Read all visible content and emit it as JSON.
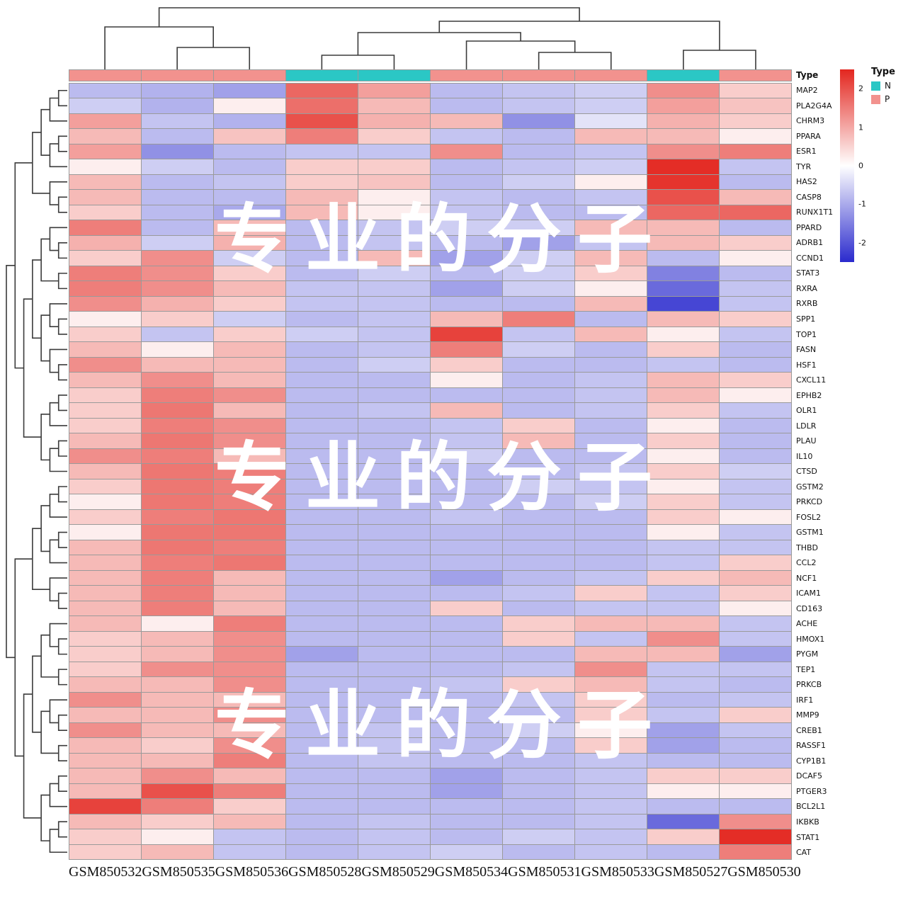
{
  "watermark": {
    "text": "专业的分子",
    "color": "#ffffff"
  },
  "annotation": {
    "label": "Type",
    "per_column": [
      "P",
      "P",
      "P",
      "N",
      "N",
      "P",
      "P",
      "P",
      "N",
      "P"
    ]
  },
  "legend": {
    "colorbar": {
      "ticks": [
        "2",
        "1",
        "0",
        "-1",
        "-2"
      ],
      "range": [
        2.5,
        -2.5
      ],
      "high_color": "#E3261F",
      "mid_color": "#FFFFFF",
      "low_color": "#2A2ACD"
    },
    "type": {
      "title": "Type",
      "items": [
        {
          "label": "N",
          "color": "#2BC7C5"
        },
        {
          "label": "P",
          "color": "#F2928E"
        }
      ]
    }
  },
  "chart_data": {
    "type": "heatmap",
    "title": "",
    "xlabel": "",
    "ylabel": "",
    "grid": true,
    "legend_position": "right",
    "columns": [
      "GSM850532",
      "GSM850535",
      "GSM850536",
      "GSM850528",
      "GSM850529",
      "GSM850534",
      "GSM850531",
      "GSM850533",
      "GSM850527",
      "GSM850530"
    ],
    "column_types": [
      "P",
      "P",
      "P",
      "N",
      "N",
      "P",
      "P",
      "P",
      "N",
      "P"
    ],
    "rows": [
      "MAP2",
      "PLA2G4A",
      "CHRM3",
      "PPARA",
      "ESR1",
      "TYR",
      "HAS2",
      "CASP8",
      "RUNX1T1",
      "PPARD",
      "ADRB1",
      "CCND1",
      "STAT3",
      "RXRA",
      "RXRB",
      "SPP1",
      "TOP1",
      "FASN",
      "HSF1",
      "CXCL11",
      "EPHB2",
      "OLR1",
      "LDLR",
      "PLAU",
      "IL10",
      "CTSD",
      "GSTM2",
      "PRKCD",
      "FOSL2",
      "GSTM1",
      "THBD",
      "CCL2",
      "NCF1",
      "ICAM1",
      "CD163",
      "ACHE",
      "HMOX1",
      "PYGM",
      "TEP1",
      "PRKCB",
      "IRF1",
      "MMP9",
      "CREB1",
      "RASSF1",
      "CYP1B1",
      "DCAF5",
      "PTGER3",
      "BCL2L1",
      "IKBKB",
      "STAT1",
      "CAT"
    ],
    "value_range": [
      -2.5,
      2.5
    ],
    "colormap": {
      "low": "#2A2ACD",
      "mid": "#FFFFFF",
      "high": "#E3261F"
    },
    "values": [
      [
        -0.6,
        -0.7,
        -0.9,
        1.6,
        0.9,
        -0.6,
        -0.5,
        -0.4,
        1.1,
        0.4
      ],
      [
        -0.4,
        -0.7,
        0.1,
        1.5,
        0.6,
        -0.6,
        -0.5,
        -0.4,
        0.9,
        0.5
      ],
      [
        0.9,
        -0.5,
        -0.7,
        1.9,
        0.7,
        0.6,
        -1.1,
        -0.2,
        0.7,
        0.4
      ],
      [
        0.6,
        -0.6,
        0.5,
        1.3,
        0.4,
        -0.5,
        -0.6,
        0.6,
        0.6,
        0.1
      ],
      [
        0.9,
        -1.1,
        -0.6,
        -0.5,
        -0.5,
        1.1,
        -0.6,
        -0.5,
        1.1,
        1.3
      ],
      [
        0.1,
        -0.4,
        -0.6,
        0.4,
        0.4,
        -0.6,
        -0.5,
        -0.4,
        2.4,
        -0.5
      ],
      [
        0.6,
        -0.6,
        -0.5,
        0.4,
        0.5,
        -0.6,
        -0.4,
        0.1,
        2.3,
        -0.6
      ],
      [
        0.6,
        -0.6,
        -0.6,
        0.6,
        0.1,
        -0.5,
        -0.6,
        -0.5,
        1.9,
        0.6
      ],
      [
        0.4,
        -0.6,
        -0.8,
        0.6,
        0.1,
        -0.5,
        -0.6,
        -0.6,
        1.6,
        1.6
      ],
      [
        1.3,
        -0.6,
        0.6,
        -0.6,
        -0.5,
        -0.4,
        -0.4,
        0.6,
        0.6,
        -0.6
      ],
      [
        0.7,
        -0.4,
        0.7,
        -0.6,
        -0.5,
        -0.6,
        -0.9,
        -0.5,
        0.6,
        0.4
      ],
      [
        0.4,
        1.1,
        -0.4,
        -0.6,
        0.6,
        -0.9,
        -0.4,
        0.6,
        -0.6,
        0.1
      ],
      [
        1.3,
        1.1,
        0.4,
        -0.6,
        -0.4,
        -0.6,
        -0.4,
        0.4,
        -1.3,
        -0.6
      ],
      [
        1.3,
        1.1,
        0.6,
        -0.5,
        -0.5,
        -0.9,
        -0.4,
        0.1,
        -1.6,
        -0.5
      ],
      [
        1.1,
        0.7,
        0.4,
        -0.5,
        -0.5,
        -0.6,
        -0.6,
        0.6,
        -2.1,
        -0.5
      ],
      [
        0.1,
        0.4,
        -0.4,
        -0.6,
        -0.5,
        0.6,
        1.3,
        -0.6,
        0.6,
        0.4
      ],
      [
        0.4,
        -0.5,
        0.4,
        -0.4,
        -0.5,
        2.1,
        -0.5,
        0.6,
        0.1,
        -0.5
      ],
      [
        0.6,
        0.1,
        0.6,
        -0.6,
        -0.5,
        1.3,
        -0.4,
        -0.6,
        0.4,
        -0.6
      ],
      [
        1.1,
        0.6,
        0.6,
        -0.6,
        -0.4,
        0.4,
        -0.6,
        -0.6,
        -0.5,
        -0.6
      ],
      [
        0.6,
        1.1,
        0.6,
        -0.6,
        -0.6,
        0.1,
        -0.6,
        -0.5,
        0.6,
        0.4
      ],
      [
        0.4,
        1.3,
        1.1,
        -0.6,
        -0.6,
        -0.6,
        -0.6,
        -0.5,
        0.6,
        0.1
      ],
      [
        0.4,
        1.4,
        0.6,
        -0.6,
        -0.5,
        0.6,
        -0.6,
        -0.5,
        0.4,
        -0.5
      ],
      [
        0.4,
        1.3,
        1.1,
        -0.6,
        -0.6,
        -0.5,
        0.4,
        -0.6,
        0.1,
        -0.6
      ],
      [
        0.6,
        1.4,
        1.1,
        -0.6,
        -0.6,
        -0.5,
        0.6,
        -0.6,
        0.4,
        -0.6
      ],
      [
        1.1,
        1.3,
        0.6,
        -0.6,
        -0.6,
        -0.4,
        -0.6,
        -0.6,
        0.1,
        -0.6
      ],
      [
        0.6,
        1.4,
        1.3,
        -0.6,
        -0.6,
        -0.6,
        -0.6,
        -0.5,
        0.4,
        -0.4
      ],
      [
        0.4,
        1.4,
        1.3,
        -0.6,
        -0.6,
        -0.6,
        -0.4,
        -0.5,
        0.1,
        -0.5
      ],
      [
        0.1,
        1.4,
        1.3,
        -0.6,
        -0.6,
        -0.6,
        -0.6,
        -0.4,
        0.4,
        -0.5
      ],
      [
        0.4,
        1.3,
        1.4,
        -0.6,
        -0.6,
        -0.5,
        -0.6,
        -0.6,
        0.4,
        0.1
      ],
      [
        0.1,
        1.4,
        1.4,
        -0.6,
        -0.6,
        -0.6,
        -0.6,
        -0.6,
        0.1,
        -0.5
      ],
      [
        0.6,
        1.4,
        1.3,
        -0.6,
        -0.6,
        -0.6,
        -0.6,
        -0.6,
        -0.5,
        -0.5
      ],
      [
        0.6,
        1.3,
        1.4,
        -0.6,
        -0.6,
        -0.6,
        -0.6,
        -0.6,
        -0.5,
        0.4
      ],
      [
        0.6,
        1.3,
        0.6,
        -0.6,
        -0.6,
        -0.9,
        -0.6,
        -0.5,
        0.4,
        0.6
      ],
      [
        0.6,
        1.3,
        0.6,
        -0.6,
        -0.6,
        -0.6,
        -0.5,
        0.4,
        -0.5,
        0.4
      ],
      [
        0.6,
        1.3,
        0.6,
        -0.6,
        -0.6,
        0.4,
        -0.6,
        -0.5,
        -0.5,
        0.1
      ],
      [
        0.6,
        0.1,
        1.3,
        -0.6,
        -0.6,
        -0.6,
        0.4,
        0.6,
        0.6,
        -0.5
      ],
      [
        0.4,
        0.6,
        1.1,
        -0.6,
        -0.6,
        -0.6,
        0.4,
        -0.5,
        1.1,
        -0.5
      ],
      [
        0.4,
        0.6,
        1.1,
        -0.9,
        -0.6,
        -0.6,
        -0.6,
        0.6,
        0.6,
        -0.9
      ],
      [
        0.4,
        1.1,
        1.1,
        -0.6,
        -0.6,
        -0.6,
        -0.5,
        1.1,
        -0.5,
        -0.5
      ],
      [
        0.6,
        0.6,
        1.1,
        -0.6,
        -0.6,
        -0.5,
        0.4,
        0.6,
        -0.5,
        -0.6
      ],
      [
        1.1,
        0.6,
        0.6,
        -0.6,
        -0.6,
        -0.6,
        -0.5,
        0.4,
        -0.6,
        -0.5
      ],
      [
        0.6,
        0.6,
        1.1,
        -0.6,
        -0.6,
        -0.6,
        -0.6,
        0.4,
        -0.5,
        0.4
      ],
      [
        1.1,
        0.6,
        0.6,
        -0.6,
        -0.5,
        -0.6,
        -0.4,
        0.1,
        -0.9,
        -0.5
      ],
      [
        0.6,
        0.4,
        1.1,
        -0.6,
        -0.5,
        -0.6,
        -0.6,
        0.4,
        -0.9,
        -0.6
      ],
      [
        0.6,
        0.6,
        1.3,
        -0.6,
        -0.5,
        -0.6,
        -0.6,
        -0.5,
        -0.6,
        -0.6
      ],
      [
        0.6,
        1.1,
        0.6,
        -0.6,
        -0.6,
        -0.9,
        -0.6,
        -0.5,
        0.4,
        0.4
      ],
      [
        0.6,
        1.9,
        1.3,
        -0.6,
        -0.6,
        -0.9,
        -0.6,
        -0.5,
        0.1,
        0.1
      ],
      [
        2.1,
        1.3,
        0.4,
        -0.6,
        -0.6,
        -0.6,
        -0.6,
        -0.5,
        -0.6,
        -0.6
      ],
      [
        0.6,
        0.4,
        0.6,
        -0.6,
        -0.5,
        -0.6,
        -0.6,
        -0.5,
        -1.6,
        1.1
      ],
      [
        0.4,
        0.1,
        -0.5,
        -0.6,
        -0.5,
        -0.6,
        -0.4,
        -0.5,
        0.4,
        2.4
      ],
      [
        0.4,
        0.6,
        -0.5,
        -0.6,
        -0.5,
        -0.4,
        -0.6,
        -0.5,
        -0.6,
        1.3
      ]
    ]
  }
}
